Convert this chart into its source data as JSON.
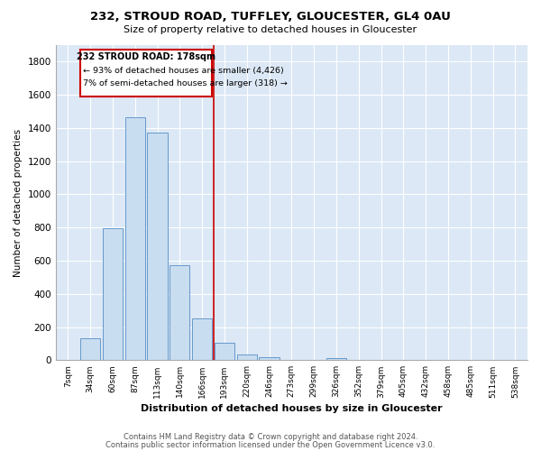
{
  "title1": "232, STROUD ROAD, TUFFLEY, GLOUCESTER, GL4 0AU",
  "title2": "Size of property relative to detached houses in Gloucester",
  "xlabel": "Distribution of detached houses by size in Gloucester",
  "ylabel": "Number of detached properties",
  "bar_labels": [
    "7sqm",
    "34sqm",
    "60sqm",
    "87sqm",
    "113sqm",
    "140sqm",
    "166sqm",
    "193sqm",
    "220sqm",
    "246sqm",
    "273sqm",
    "299sqm",
    "326sqm",
    "352sqm",
    "379sqm",
    "405sqm",
    "432sqm",
    "458sqm",
    "485sqm",
    "511sqm",
    "538sqm"
  ],
  "bar_values": [
    0,
    130,
    795,
    1465,
    1370,
    575,
    250,
    105,
    35,
    20,
    0,
    0,
    12,
    0,
    0,
    0,
    0,
    0,
    0,
    0,
    0
  ],
  "bar_color": "#c9ddf0",
  "bar_edge_color": "#6699cc",
  "marker_line_color": "#cc0000",
  "annotation_line1": "232 STROUD ROAD: 178sqm",
  "annotation_line2": "← 93% of detached houses are smaller (4,426)",
  "annotation_line3": "7% of semi-detached houses are larger (318) →",
  "annotation_box_edge": "#cc0000",
  "ylim": [
    0,
    1900
  ],
  "yticks": [
    0,
    200,
    400,
    600,
    800,
    1000,
    1200,
    1400,
    1600,
    1800
  ],
  "footer1": "Contains HM Land Registry data © Crown copyright and database right 2024.",
  "footer2": "Contains public sector information licensed under the Open Government Licence v3.0.",
  "bg_color": "#dce8f5",
  "plot_bg_color": "#dce8f5"
}
